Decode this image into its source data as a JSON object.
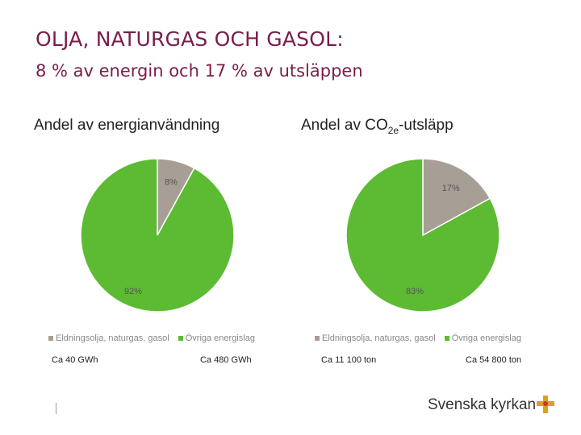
{
  "header": {
    "title": "OLJA, NATURGAS OCH GASOL:",
    "subtitle": "8 % av energin och 17 % av utsläppen"
  },
  "charts": [
    {
      "heading_pre": "Andel av energianvändning",
      "heading_sub": "",
      "heading_post": "",
      "total_left": "Ca 40 GWh",
      "total_right": "Ca 480 GWh"
    },
    {
      "heading_pre": "Andel av CO",
      "heading_sub": "2e",
      "heading_post": "-utsläpp",
      "total_left": "Ca 11 100 ton",
      "total_right": "Ca 54 800 ton"
    }
  ],
  "legend": {
    "items": [
      "Eldningsolja, naturgas, gasol",
      "Övriga energislag"
    ],
    "colors": [
      "#a79e96",
      "#5cbb32"
    ]
  },
  "logo": {
    "text": "Svenska kyrkan",
    "accent": "#e2a018",
    "accent2": "#c0392b"
  },
  "chart_data": [
    {
      "type": "pie",
      "title": "Andel av energianvändning",
      "categories": [
        "Eldningsolja, naturgas, gasol",
        "Övriga energislag"
      ],
      "values": [
        8,
        92
      ],
      "labels": [
        "8%",
        "92%"
      ],
      "colors": [
        "#a79e96",
        "#5cbb32"
      ],
      "legend": "bottom"
    },
    {
      "type": "pie",
      "title": "Andel av CO2e-utsläpp",
      "categories": [
        "Eldningsolja, naturgas, gasol",
        "Övriga energislag"
      ],
      "values": [
        17,
        83
      ],
      "labels": [
        "17%",
        "83%"
      ],
      "colors": [
        "#a79e96",
        "#5cbb32"
      ],
      "legend": "bottom"
    }
  ]
}
